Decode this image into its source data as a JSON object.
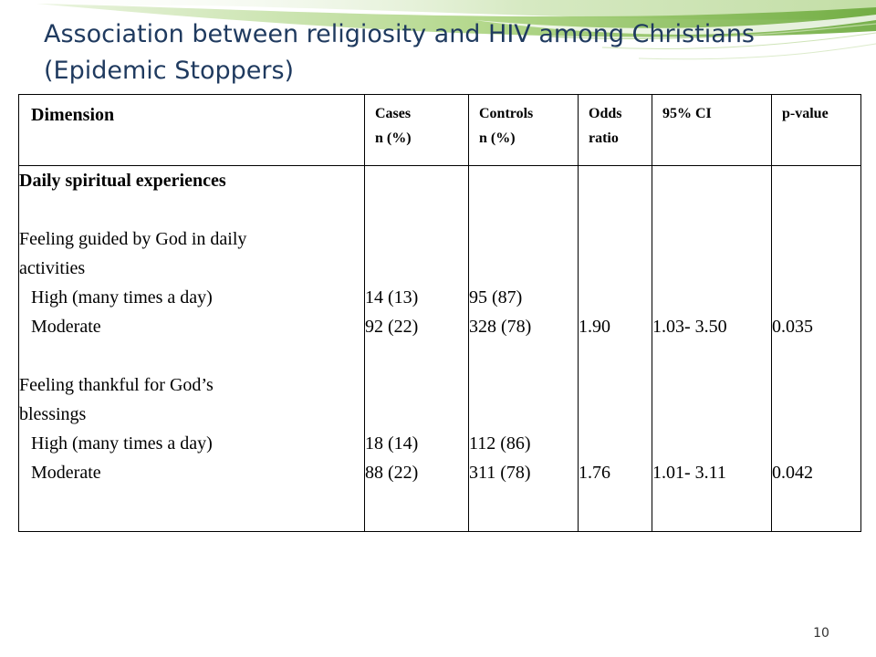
{
  "slide": {
    "title": "Association between religiosity and HIV among Christians (Epidemic Stoppers)",
    "page_number": "10",
    "accent_colors": [
      "#7fbf3f",
      "#c8e3a8"
    ]
  },
  "table": {
    "headers": {
      "dimension": "Dimension",
      "cases_l1": "Cases",
      "cases_l2": "n (%)",
      "controls_l1": "Controls",
      "controls_l2": "n (%)",
      "odds_l1": "Odds",
      "odds_l2": "ratio",
      "ci": "95% CI",
      "p": "p-value"
    },
    "section_title": "Daily spiritual experiences",
    "item1": {
      "label_l1": "Feeling guided by God in daily",
      "label_l2": "activities",
      "high_label": "High (many times a day)",
      "moderate_label": "Moderate",
      "cases_high": "14 (13)",
      "cases_moderate": "92 (22)",
      "controls_high": "95 (87)",
      "controls_moderate": "328 (78)",
      "odds_ratio": "1.90",
      "ci": "1.03- 3.50",
      "p_value": "0.035"
    },
    "item2": {
      "label_l1": "Feeling thankful for God’s",
      "label_l2": "blessings",
      "high_label": "High (many times a day)",
      "moderate_label": "Moderate",
      "cases_high": "18 (14)",
      "cases_moderate": "88 (22)",
      "controls_high": "112 (86)",
      "controls_moderate": "311 (78)",
      "odds_ratio": "1.76",
      "ci": "1.01- 3.11",
      "p_value": "0.042"
    }
  }
}
